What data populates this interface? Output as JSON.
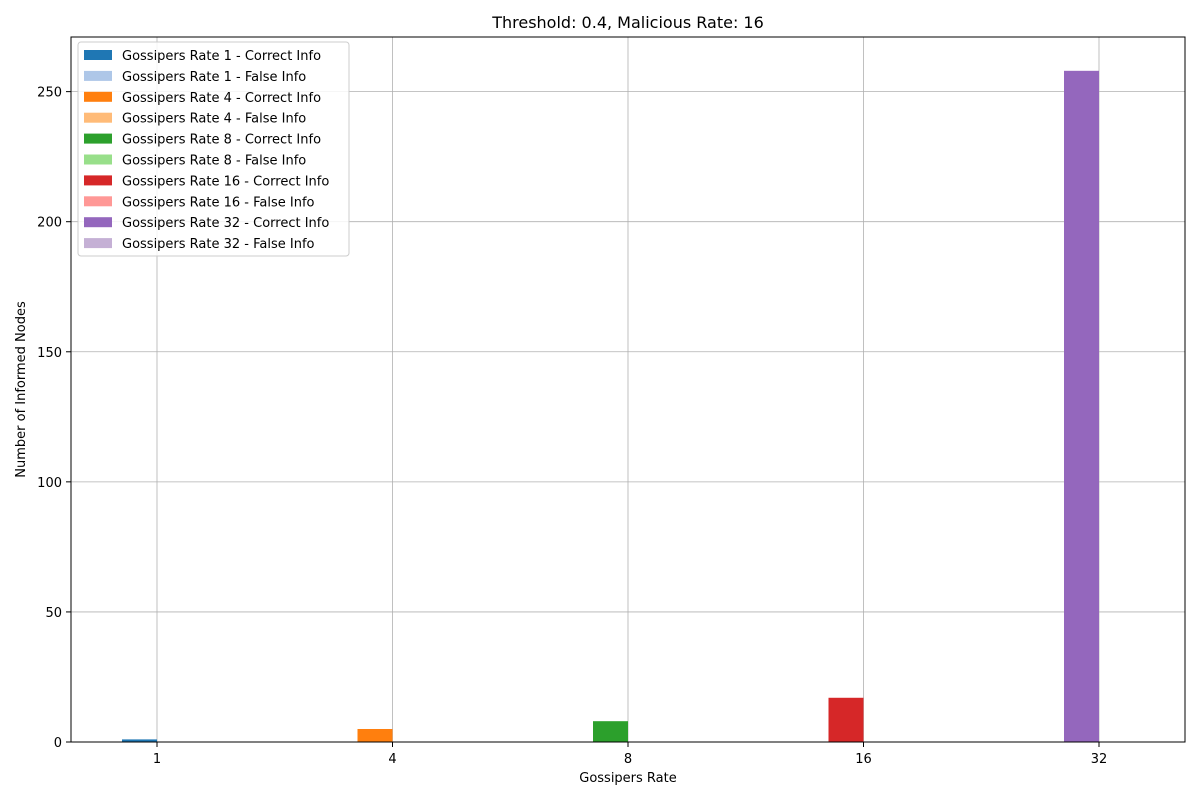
{
  "chart_data": {
    "type": "bar",
    "title": "Threshold: 0.4, Malicious Rate: 16",
    "xlabel": "Gossipers Rate",
    "ylabel": "Number of Informed Nodes",
    "categories": [
      "1",
      "4",
      "8",
      "16",
      "32"
    ],
    "ylim": [
      0,
      271
    ],
    "yticks": [
      0,
      50,
      100,
      150,
      200,
      250
    ],
    "grid": true,
    "legend_position": "top-left",
    "series": [
      {
        "name": "Gossipers Rate 1 - Correct Info",
        "category": "1",
        "value": 1,
        "kind": "correct",
        "color": "#1f77b4"
      },
      {
        "name": "Gossipers Rate 1 - False Info",
        "category": "1",
        "value": 0,
        "kind": "false",
        "color": "#aec7e8"
      },
      {
        "name": "Gossipers Rate 4 - Correct Info",
        "category": "4",
        "value": 5,
        "kind": "correct",
        "color": "#ff7f0e"
      },
      {
        "name": "Gossipers Rate 4 - False Info",
        "category": "4",
        "value": 0,
        "kind": "false",
        "color": "#ffbb78"
      },
      {
        "name": "Gossipers Rate 8 - Correct Info",
        "category": "8",
        "value": 8,
        "kind": "correct",
        "color": "#2ca02c"
      },
      {
        "name": "Gossipers Rate 8 - False Info",
        "category": "8",
        "value": 0,
        "kind": "false",
        "color": "#98df8a"
      },
      {
        "name": "Gossipers Rate 16 - Correct Info",
        "category": "16",
        "value": 17,
        "kind": "correct",
        "color": "#d62728"
      },
      {
        "name": "Gossipers Rate 16 - False Info",
        "category": "16",
        "value": 0,
        "kind": "false",
        "color": "#ff9896"
      },
      {
        "name": "Gossipers Rate 32 - Correct Info",
        "category": "32",
        "value": 258,
        "kind": "correct",
        "color": "#9467bd"
      },
      {
        "name": "Gossipers Rate 32 - False Info",
        "category": "32",
        "value": 0,
        "kind": "false",
        "color": "#c5b0d5"
      }
    ]
  }
}
